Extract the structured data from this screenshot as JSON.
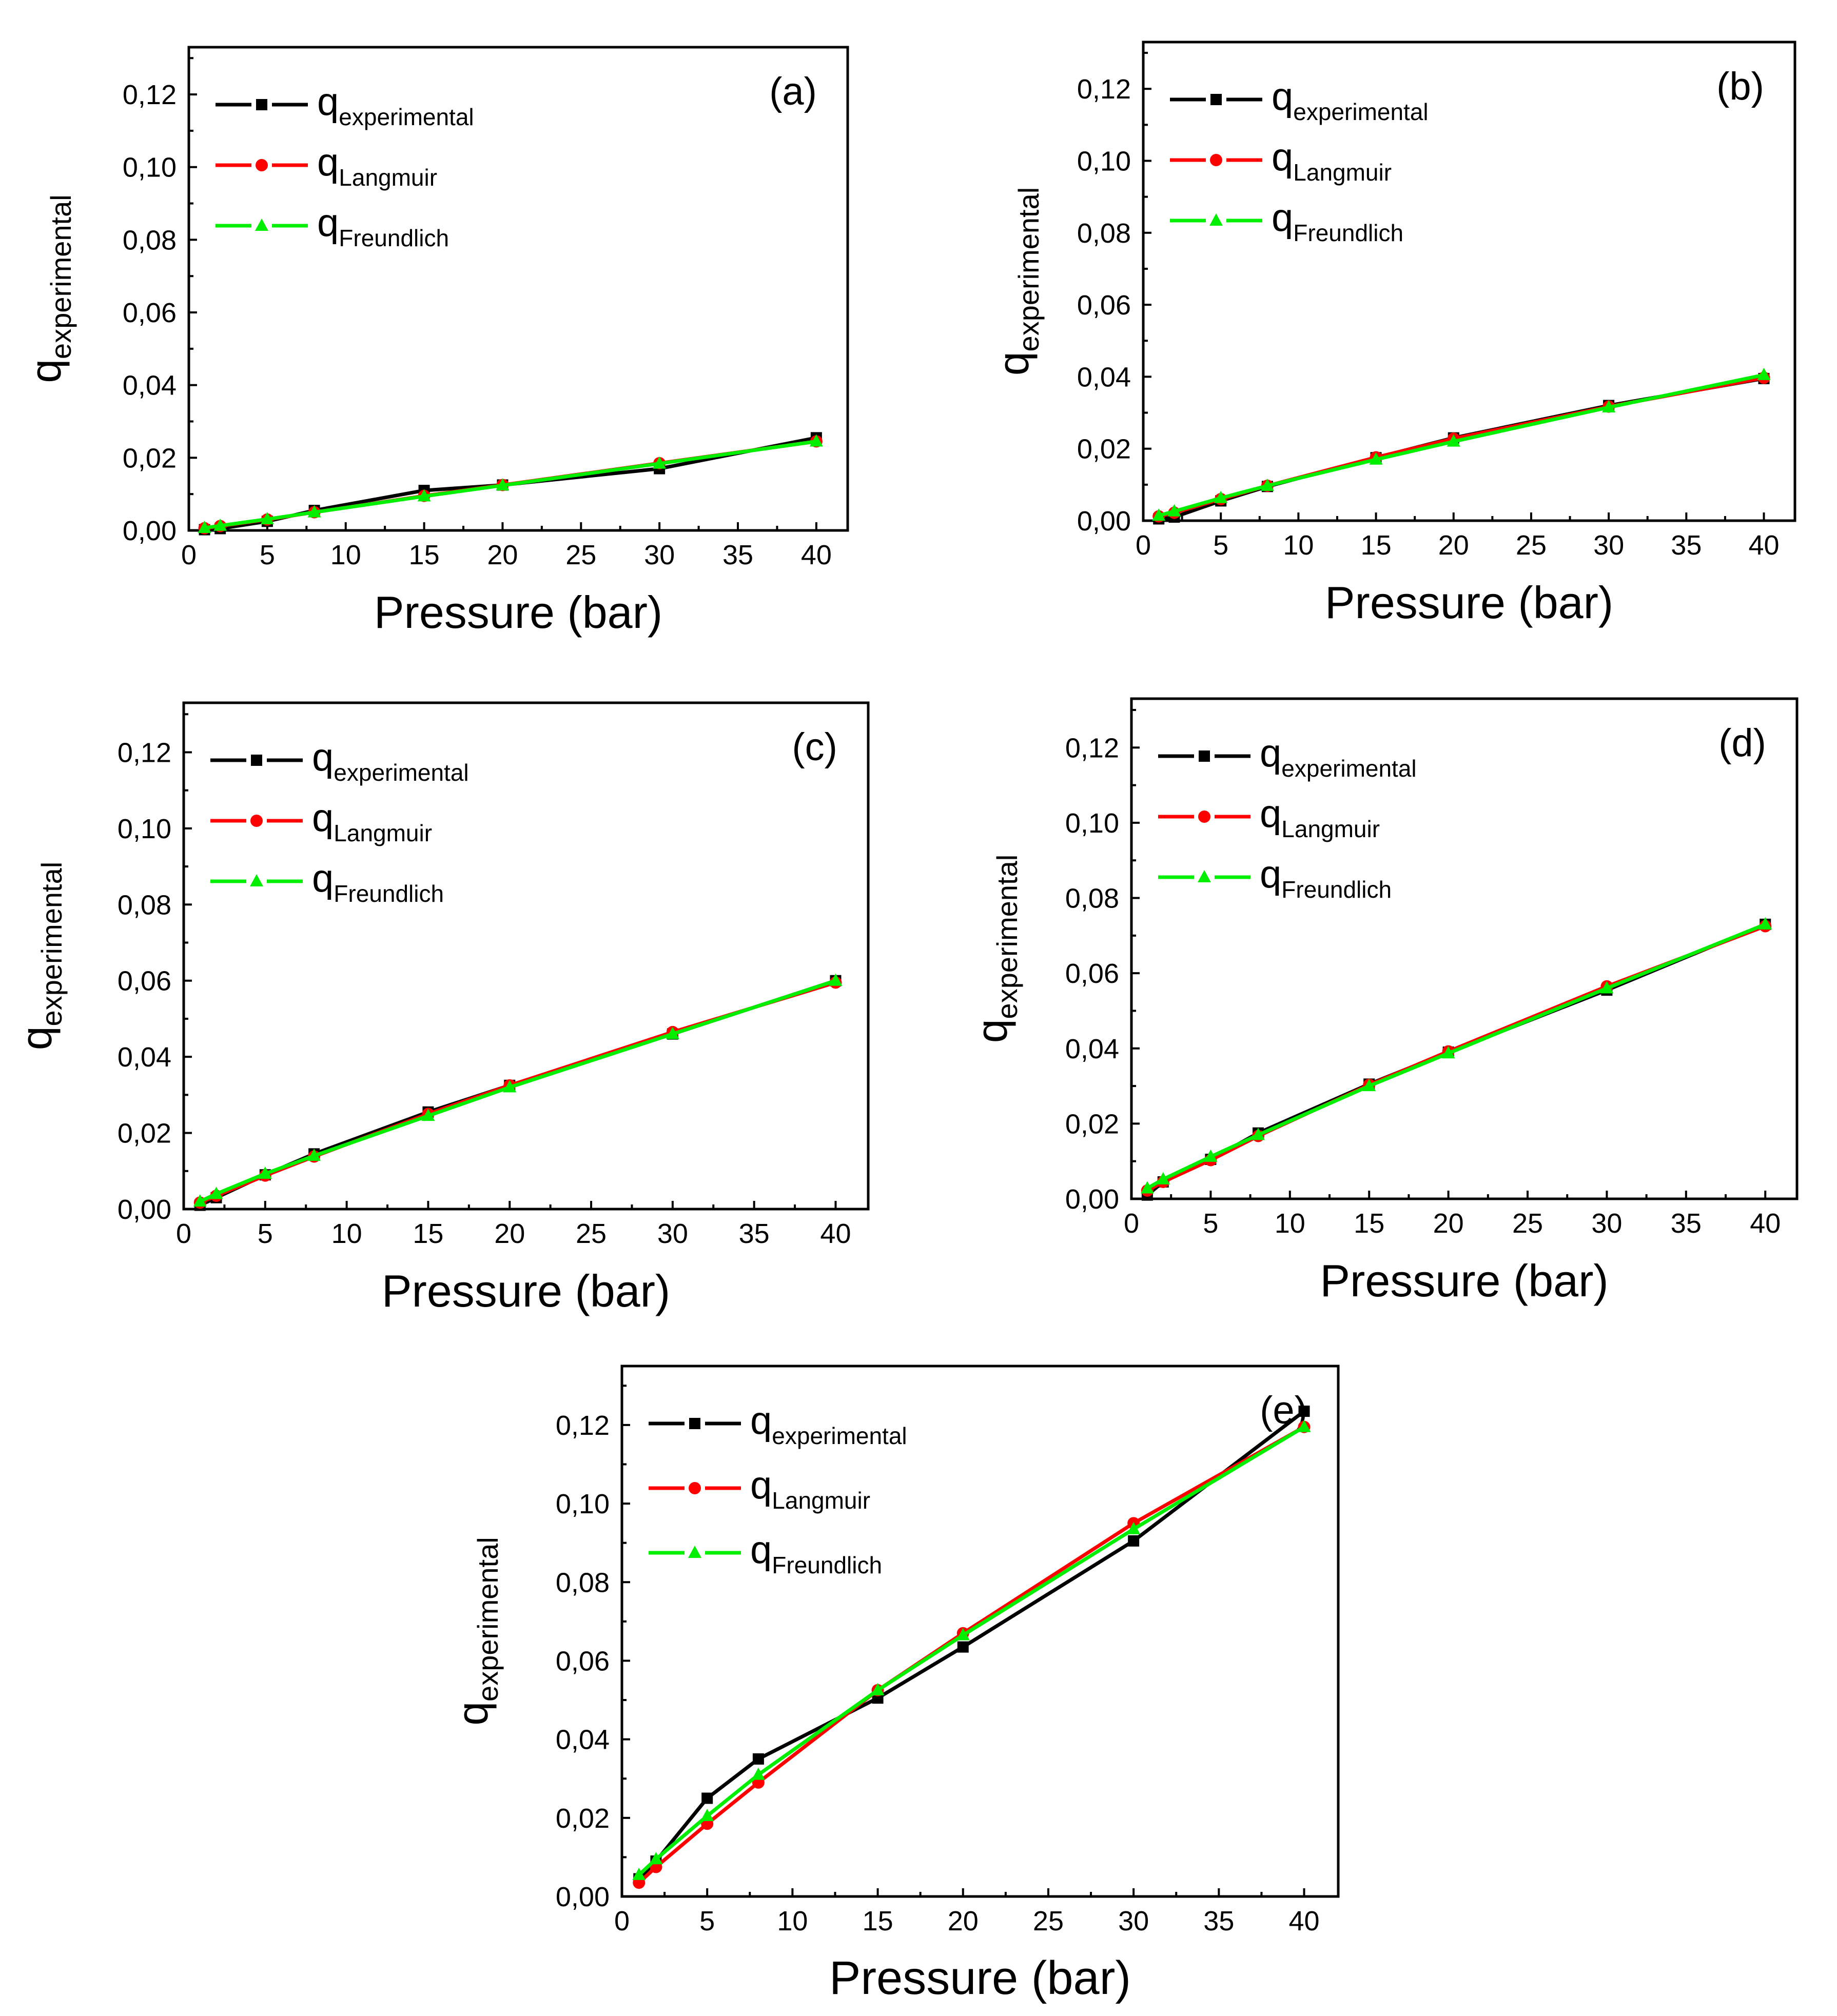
{
  "colors": {
    "experimental": "#000000",
    "langmuir": "#ff0000",
    "freundlich": "#00ee00"
  },
  "chart_data": [
    {
      "type": "line",
      "panel_label": "(a)",
      "xlabel": "Pressure (bar)",
      "ylabel": {
        "base": "q",
        "sub": "experimental"
      },
      "x_ticks": [
        "0",
        "5",
        "10",
        "15",
        "20",
        "25",
        "30",
        "35",
        "40"
      ],
      "y_ticks": [
        "0,00",
        "0,02",
        "0,04",
        "0,06",
        "0,08",
        "0,10",
        "0,12"
      ],
      "xlim": [
        0,
        42
      ],
      "ylim": [
        0,
        0.133
      ],
      "legend_position": "top-left",
      "x": [
        1,
        2,
        5,
        8,
        15,
        20,
        30,
        40
      ],
      "series": [
        {
          "key": "experimental",
          "base": "q",
          "sub": "experimental",
          "marker": "square",
          "values": [
            0.0002,
            0.0005,
            0.0025,
            0.0055,
            0.011,
            0.0125,
            0.017,
            0.0255
          ]
        },
        {
          "key": "langmuir",
          "base": "q",
          "sub": "Langmuir",
          "marker": "circle",
          "values": [
            0.0006,
            0.0012,
            0.003,
            0.005,
            0.0095,
            0.0125,
            0.0185,
            0.0245
          ]
        },
        {
          "key": "freundlich",
          "base": "q",
          "sub": "Freundlich",
          "marker": "triangle",
          "values": [
            0.0007,
            0.0013,
            0.0031,
            0.005,
            0.0094,
            0.0124,
            0.0184,
            0.0245
          ]
        }
      ]
    },
    {
      "type": "line",
      "panel_label": "(b)",
      "xlabel": "Pressure (bar)",
      "ylabel": {
        "base": "q",
        "sub": "experimental"
      },
      "x_ticks": [
        "0",
        "5",
        "10",
        "15",
        "20",
        "25",
        "30",
        "35",
        "40"
      ],
      "y_ticks": [
        "0,00",
        "0,02",
        "0,04",
        "0,06",
        "0,08",
        "0,10",
        "0,12"
      ],
      "xlim": [
        0,
        42
      ],
      "ylim": [
        0,
        0.133
      ],
      "legend_position": "top-left",
      "x": [
        1,
        2,
        5,
        8,
        15,
        20,
        30,
        40
      ],
      "series": [
        {
          "key": "experimental",
          "base": "q",
          "sub": "experimental",
          "marker": "square",
          "values": [
            0.0005,
            0.001,
            0.0055,
            0.0095,
            0.0175,
            0.023,
            0.032,
            0.0395
          ]
        },
        {
          "key": "langmuir",
          "base": "q",
          "sub": "Langmuir",
          "marker": "circle",
          "values": [
            0.0012,
            0.0022,
            0.006,
            0.0097,
            0.0176,
            0.0228,
            0.0317,
            0.0397
          ]
        },
        {
          "key": "freundlich",
          "base": "q",
          "sub": "Freundlich",
          "marker": "triangle",
          "values": [
            0.0014,
            0.0026,
            0.0063,
            0.0097,
            0.017,
            0.022,
            0.0315,
            0.0405
          ]
        }
      ]
    },
    {
      "type": "line",
      "panel_label": "(c)",
      "xlabel": "Pressure (bar)",
      "ylabel": {
        "base": "q",
        "sub": "experimental"
      },
      "x_ticks": [
        "0",
        "5",
        "10",
        "15",
        "20",
        "25",
        "30",
        "35",
        "40"
      ],
      "y_ticks": [
        "0,00",
        "0,02",
        "0,04",
        "0,06",
        "0,08",
        "0,10",
        "0,12"
      ],
      "xlim": [
        0,
        42
      ],
      "ylim": [
        0,
        0.133
      ],
      "legend_position": "top-left",
      "x": [
        1,
        2,
        5,
        8,
        15,
        20,
        30,
        40
      ],
      "series": [
        {
          "key": "experimental",
          "base": "q",
          "sub": "experimental",
          "marker": "square",
          "values": [
            0.001,
            0.003,
            0.009,
            0.0145,
            0.0255,
            0.0325,
            0.046,
            0.06
          ]
        },
        {
          "key": "langmuir",
          "base": "q",
          "sub": "Langmuir",
          "marker": "circle",
          "values": [
            0.0017,
            0.0035,
            0.0088,
            0.0138,
            0.025,
            0.0325,
            0.0465,
            0.0595
          ]
        },
        {
          "key": "freundlich",
          "base": "q",
          "sub": "Freundlich",
          "marker": "triangle",
          "values": [
            0.002,
            0.004,
            0.0093,
            0.014,
            0.0245,
            0.032,
            0.046,
            0.06
          ]
        }
      ]
    },
    {
      "type": "line",
      "panel_label": "(d)",
      "xlabel": "Pressure (bar)",
      "ylabel": {
        "base": "q",
        "sub": "experimental"
      },
      "x_ticks": [
        "0",
        "5",
        "10",
        "15",
        "20",
        "25",
        "30",
        "35",
        "40"
      ],
      "y_ticks": [
        "0,00",
        "0,02",
        "0,04",
        "0,06",
        "0,08",
        "0,10",
        "0,12"
      ],
      "xlim": [
        0,
        42
      ],
      "ylim": [
        0,
        0.133
      ],
      "legend_position": "top-left",
      "x": [
        1,
        2,
        5,
        8,
        15,
        20,
        30,
        40
      ],
      "series": [
        {
          "key": "experimental",
          "base": "q",
          "sub": "experimental",
          "marker": "square",
          "values": [
            0.001,
            0.0045,
            0.0105,
            0.0175,
            0.0305,
            0.039,
            0.0555,
            0.073
          ]
        },
        {
          "key": "langmuir",
          "base": "q",
          "sub": "Langmuir",
          "marker": "circle",
          "values": [
            0.0022,
            0.0045,
            0.0103,
            0.0167,
            0.0303,
            0.0392,
            0.0565,
            0.0725
          ]
        },
        {
          "key": "freundlich",
          "base": "q",
          "sub": "Freundlich",
          "marker": "triangle",
          "values": [
            0.0028,
            0.0052,
            0.0112,
            0.017,
            0.03,
            0.0387,
            0.056,
            0.073
          ]
        }
      ]
    },
    {
      "type": "line",
      "panel_label": "(e)",
      "xlabel": "Pressure (bar)",
      "ylabel": {
        "base": "q",
        "sub": "experimental"
      },
      "x_ticks": [
        "0",
        "5",
        "10",
        "15",
        "20",
        "25",
        "30",
        "35",
        "40"
      ],
      "y_ticks": [
        "0,00",
        "0,02",
        "0,04",
        "0,06",
        "0,08",
        "0,10",
        "0,12"
      ],
      "xlim": [
        0,
        42
      ],
      "ylim": [
        0,
        0.135
      ],
      "legend_position": "top-left",
      "x": [
        1,
        2,
        5,
        8,
        15,
        20,
        30,
        40
      ],
      "series": [
        {
          "key": "experimental",
          "base": "q",
          "sub": "experimental",
          "marker": "square",
          "values": [
            0.0045,
            0.009,
            0.025,
            0.035,
            0.0505,
            0.0635,
            0.0905,
            0.1235
          ]
        },
        {
          "key": "langmuir",
          "base": "q",
          "sub": "Langmuir",
          "marker": "circle",
          "values": [
            0.0035,
            0.0075,
            0.0185,
            0.029,
            0.0525,
            0.067,
            0.095,
            0.1195
          ]
        },
        {
          "key": "freundlich",
          "base": "q",
          "sub": "Freundlich",
          "marker": "triangle",
          "values": [
            0.0055,
            0.0095,
            0.0205,
            0.031,
            0.0525,
            0.0665,
            0.0935,
            0.1195
          ]
        }
      ]
    }
  ]
}
